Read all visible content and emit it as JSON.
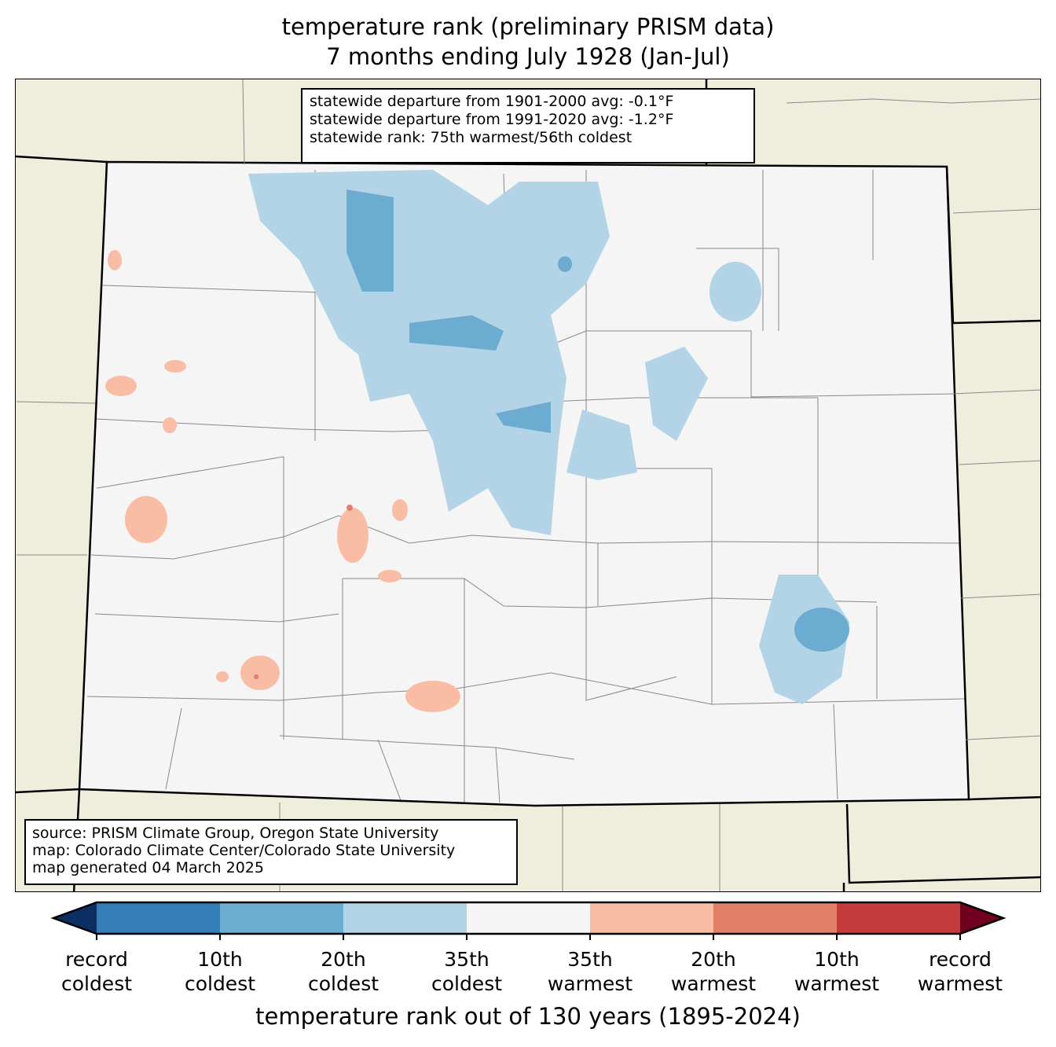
{
  "title": {
    "line1": "temperature rank (preliminary PRISM data)",
    "line2": "7 months ending July 1928 (Jan-Jul)"
  },
  "stats": {
    "line1": "statewide departure from 1901-2000 avg: -0.1°F",
    "line2": "statewide departure from 1991-2020 avg: -1.2°F",
    "line3": "statewide rank: 75th warmest/56th coldest"
  },
  "source": {
    "line1": "source: PRISM Climate Group, Oregon State University",
    "line2": "map: Colorado Climate Center/Colorado State University",
    "line3": "map generated 04 March 2025"
  },
  "colorbar": {
    "colors": [
      "#0c2f61",
      "#337eb8",
      "#6bacd0",
      "#b3d4e6",
      "#f5f5f5",
      "#f9bda5",
      "#e27f68",
      "#c43b3c",
      "#6f0020"
    ],
    "labels": [
      {
        "top": "record",
        "bottom": "coldest"
      },
      {
        "top": "10th",
        "bottom": "coldest"
      },
      {
        "top": "20th",
        "bottom": "coldest"
      },
      {
        "top": "35th",
        "bottom": "coldest"
      },
      {
        "top": "35th",
        "bottom": "warmest"
      },
      {
        "top": "20th",
        "bottom": "warmest"
      },
      {
        "top": "10th",
        "bottom": "warmest"
      },
      {
        "top": "record",
        "bottom": "warmest"
      }
    ],
    "xlabel": "temperature rank out of 130 years (1895-2024)"
  }
}
